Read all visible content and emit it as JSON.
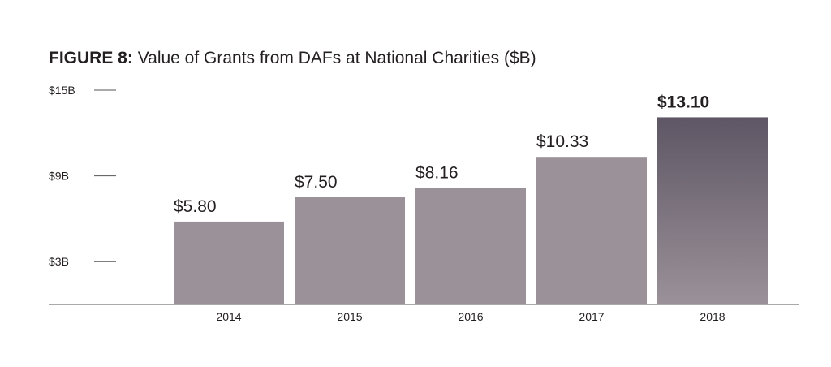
{
  "chart_data": {
    "type": "bar",
    "title_lead": "FIGURE 8:",
    "title": "Value of Grants from DAFs at National Charities ($B)",
    "categories": [
      "2014",
      "2015",
      "2016",
      "2017",
      "2018"
    ],
    "values": [
      5.8,
      7.5,
      8.16,
      10.33,
      13.1
    ],
    "value_labels": [
      "$5.80",
      "$7.50",
      "$8.16",
      "$10.33",
      "$13.10"
    ],
    "highlight_index": 4,
    "yticks": [
      {
        "value": 3,
        "label": "$3B"
      },
      {
        "value": 9,
        "label": "$9B"
      },
      {
        "value": 15,
        "label": "$15B"
      }
    ],
    "ylim": [
      0,
      15
    ],
    "grid": false,
    "colors": {
      "bar": "#9a9199",
      "highlight_top": "#5e5664",
      "highlight_bottom": "#9a9199",
      "axis": "#555555",
      "text": "#231f20"
    }
  }
}
